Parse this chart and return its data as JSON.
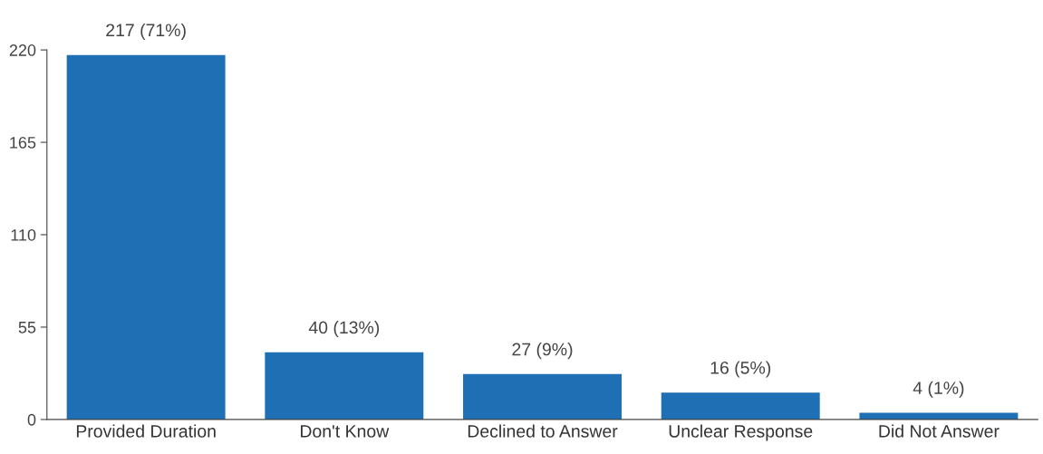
{
  "chart_data": {
    "type": "bar",
    "categories": [
      "Provided Duration",
      "Don't Know",
      "Declined to Answer",
      "Unclear Response",
      "Did Not Answer"
    ],
    "values": [
      217,
      40,
      27,
      16,
      4
    ],
    "value_labels": [
      "217 (71%)",
      "40 (13%)",
      "27 (9%)",
      "16 (5%)",
      "4 (1%)"
    ],
    "color": "#1f6fb5",
    "ylim": [
      0,
      220
    ],
    "yticks": [
      0,
      55,
      110,
      165,
      220
    ],
    "grid": false
  }
}
